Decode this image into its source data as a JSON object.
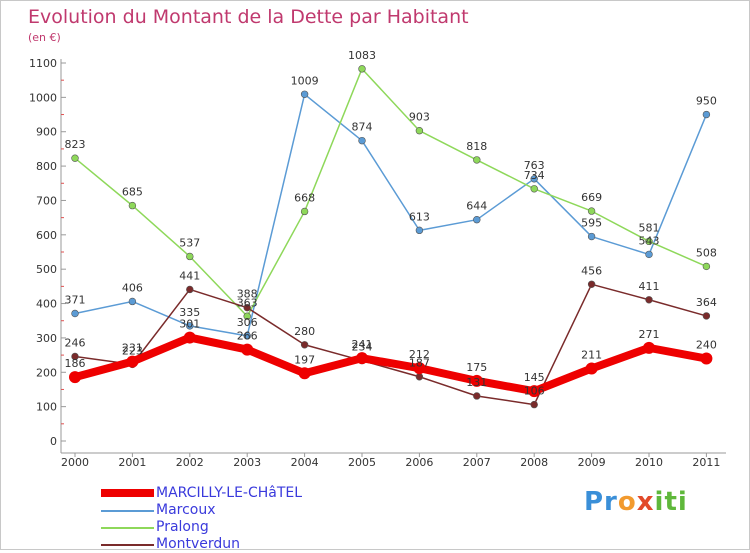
{
  "chart_data": {
    "type": "line",
    "title": "Evolution du Montant de la Dette par Habitant",
    "subtitle": "(en €)",
    "categories": [
      "2000",
      "2001",
      "2002",
      "2003",
      "2004",
      "2005",
      "2006",
      "2007",
      "2008",
      "2009",
      "2010",
      "2011"
    ],
    "ylim": [
      0,
      1100
    ],
    "yticks": [
      0,
      100,
      200,
      300,
      400,
      500,
      600,
      700,
      800,
      900,
      1000,
      1100
    ],
    "grid": false,
    "legend_position": "bottom-left",
    "series": [
      {
        "name": "MARCILLY-LE-CHâTEL",
        "color": "#ee0000",
        "values": [
          186,
          231,
          301,
          266,
          197,
          241,
          212,
          175,
          145,
          211,
          271,
          240
        ]
      },
      {
        "name": "Marcoux",
        "color": "#5b9bd5",
        "values": [
          371,
          406,
          335,
          306,
          1009,
          874,
          613,
          644,
          763,
          595,
          543,
          950
        ]
      },
      {
        "name": "Pralong",
        "color": "#8ed85a",
        "values": [
          823,
          685,
          537,
          363,
          668,
          1083,
          903,
          818,
          734,
          669,
          581,
          508
        ]
      },
      {
        "name": "Montverdun",
        "color": "#7a2b2b",
        "values": [
          246,
          223,
          441,
          388,
          280,
          234,
          187,
          131,
          106,
          456,
          411,
          364
        ]
      }
    ]
  },
  "logo": {
    "text": "Proxiti",
    "parts": [
      "Pr",
      "o",
      "x",
      "iti"
    ]
  }
}
